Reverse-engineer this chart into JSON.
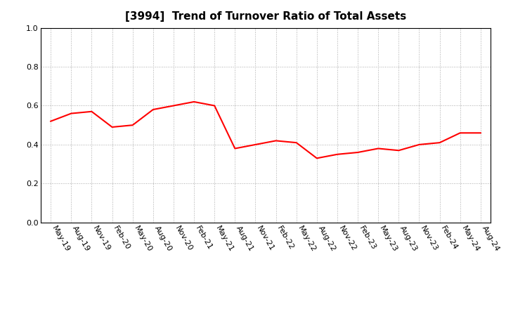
{
  "title": "[3994]  Trend of Turnover Ratio of Total Assets",
  "xlabels": [
    "May-19",
    "Aug-19",
    "Nov-19",
    "Feb-20",
    "May-20",
    "Aug-20",
    "Nov-20",
    "Feb-21",
    "May-21",
    "Aug-21",
    "Nov-21",
    "Feb-22",
    "May-22",
    "Aug-22",
    "Nov-22",
    "Feb-23",
    "May-23",
    "Aug-23",
    "Nov-23",
    "Feb-24",
    "May-24",
    "Aug-24"
  ],
  "yvalues": [
    0.52,
    0.56,
    0.57,
    0.49,
    0.5,
    0.58,
    0.6,
    0.62,
    0.6,
    0.38,
    0.4,
    0.42,
    0.41,
    0.33,
    0.35,
    0.36,
    0.38,
    0.37,
    0.4,
    0.41,
    0.46,
    0.46
  ],
  "line_color": "#FF0000",
  "line_width": 1.5,
  "ylim": [
    0.0,
    1.0
  ],
  "yticks": [
    0.0,
    0.2,
    0.4,
    0.6,
    0.8,
    1.0
  ],
  "background_color": "#FFFFFF",
  "grid_color": "#AAAAAA",
  "title_fontsize": 11,
  "tick_fontsize": 8,
  "title_loc": "center"
}
